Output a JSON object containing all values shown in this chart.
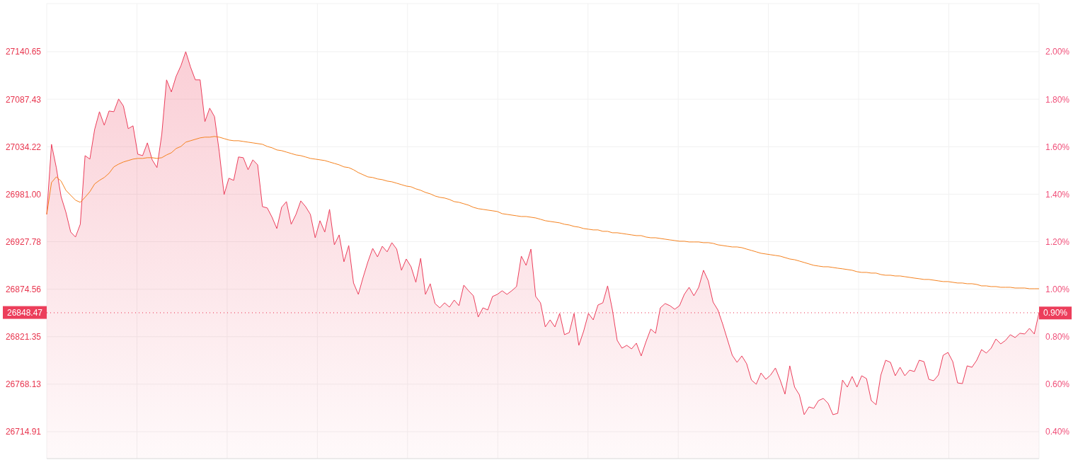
{
  "chart_data": {
    "type": "area",
    "categories": [
      null,
      null,
      null,
      null,
      null,
      null,
      null,
      null,
      null,
      null,
      null,
      null,
      null,
      null,
      null,
      null,
      null,
      null,
      null,
      null,
      null,
      null,
      null,
      null,
      null,
      null,
      null,
      null,
      null,
      null,
      null,
      null,
      null,
      null,
      null,
      null,
      null,
      null,
      null,
      null,
      null,
      null,
      null,
      null,
      null,
      null,
      null,
      null,
      null,
      null,
      null,
      null,
      null,
      null,
      null,
      null,
      null,
      null,
      null,
      null,
      null,
      null,
      null,
      null,
      null,
      null,
      null,
      null,
      null,
      null,
      null,
      null,
      null,
      null,
      null,
      null,
      null,
      null,
      null,
      null,
      null,
      null,
      null,
      null,
      null,
      null,
      null,
      null,
      null,
      null,
      null,
      null,
      null,
      null,
      null,
      null,
      null,
      null,
      null,
      null,
      null,
      null,
      null,
      null,
      null,
      null,
      null,
      null,
      null,
      null,
      null,
      null,
      null,
      null,
      null,
      null,
      null,
      null,
      null,
      null,
      null,
      null,
      null,
      null,
      null,
      null,
      null,
      null,
      null,
      null,
      null,
      null,
      null,
      null,
      null,
      null,
      null,
      null,
      null,
      null,
      null,
      null,
      null,
      null,
      null,
      null,
      null,
      null,
      null,
      null,
      null,
      null,
      null,
      null,
      null,
      null,
      null,
      null,
      null,
      null,
      null,
      null,
      null,
      null,
      null,
      null,
      null,
      null,
      null,
      null,
      null,
      null,
      null,
      null,
      null,
      null,
      null,
      null,
      null,
      null,
      null,
      null,
      null,
      null,
      null,
      null,
      null,
      null,
      null,
      null,
      null,
      null,
      null,
      null,
      null,
      null,
      null,
      null,
      null,
      null,
      null,
      null,
      null,
      null,
      null,
      null,
      null,
      null
    ],
    "series": [
      {
        "color": "#ec3e5b",
        "values": [
          26958.4,
          27036.9,
          27010.8,
          26978.2,
          26960.8,
          26938.6,
          26933.0,
          26947.3,
          27024.2,
          27020.3,
          27053.6,
          27073.4,
          27058.3,
          27074.2,
          27073.4,
          27087.7,
          27079.8,
          27054.4,
          27057.6,
          27025.8,
          27024.2,
          27038.5,
          27019.5,
          27010.8,
          27048.0,
          27109.1,
          27095.6,
          27113.1,
          27125.0,
          27140.7,
          27123.4,
          27109.1,
          27109.1,
          27062.3,
          27077.4,
          27067.9,
          27028.2,
          26980.6,
          26998.9,
          26996.5,
          27022.7,
          27021.9,
          27008.4,
          27019.5,
          27013.9,
          26967.1,
          26965.6,
          26955.2,
          26942.5,
          26966.3,
          26972.7,
          26947.3,
          26958.4,
          26973.5,
          26967.1,
          26958.4,
          26932.2,
          26951.3,
          26938.6,
          26964.0,
          26924.3,
          26935.4,
          26905.3,
          26923.5,
          26881.5,
          26868.8,
          26887.8,
          26905.3,
          26920.3,
          26910.8,
          26922.7,
          26916.4,
          26926.7,
          26919.5,
          26895.8,
          26908.4,
          26899.7,
          26882.3,
          26909.2,
          26868.8,
          26880.7,
          26858.5,
          26853.7,
          26859.3,
          26854.5,
          26862.4,
          26856.1,
          26879.1,
          26872.8,
          26867.2,
          26843.4,
          26853.7,
          26851.3,
          26866.4,
          26868.8,
          26872.8,
          26868.8,
          26872.8,
          26877.5,
          26911.6,
          26901.3,
          26919.5,
          26866.4,
          26859.3,
          26832.3,
          26840.2,
          26832.3,
          26847.4,
          26823.6,
          26826.0,
          26847.4,
          26811.7,
          26827.5,
          26847.4,
          26840.2,
          26856.9,
          26859.3,
          26878.3,
          26851.3,
          26817.2,
          26808.5,
          26811.7,
          26807.7,
          26814.1,
          26799.8,
          26815.6,
          26829.9,
          26825.2,
          26853.7,
          26858.5,
          26856.1,
          26852.1,
          26856.1,
          26868.8,
          26876.7,
          26867.2,
          26876.7,
          26895.8,
          26883.9,
          26860.1,
          26851.3,
          26835.5,
          26818.0,
          26800.6,
          26792.6,
          26799.8,
          26791.1,
          26772.8,
          26768.1,
          26780.7,
          26773.6,
          26778.4,
          26786.3,
          26772.8,
          26757.0,
          26788.7,
          26764.9,
          26756.2,
          26734.0,
          26742.7,
          26741.1,
          26749.8,
          26752.2,
          26746.6,
          26734.0,
          26735.5,
          26772.8,
          26764.9,
          26776.8,
          26764.9,
          26777.6,
          26774.4,
          26749.8,
          26745.1,
          26778.4,
          26795.0,
          26792.6,
          26777.6,
          26787.1,
          26777.6,
          26783.9,
          26782.3,
          26795.0,
          26793.4,
          26773.6,
          26772.0,
          26778.4,
          26800.6,
          26803.7,
          26793.4,
          26769.6,
          26768.8,
          26788.7,
          26787.1,
          26795.0,
          26806.9,
          26803.0,
          26808.5,
          26818.8,
          26813.3,
          26817.2,
          26823.6,
          26820.4,
          26825.2,
          26824.4,
          26830.7,
          26824.4,
          26848.47
        ]
      },
      {
        "type": "line",
        "color": "#f5821f",
        "values": [
          26958.4,
          26994.1,
          27000.4,
          26995.7,
          26985.4,
          26979.8,
          26974.3,
          26971.9,
          26977.5,
          26983.8,
          26992.5,
          26996.5,
          26999.7,
          27004.4,
          27011.6,
          27014.7,
          27017.1,
          27018.7,
          27020.3,
          27021.1,
          27021.1,
          27021.9,
          27021.9,
          27021.1,
          27021.9,
          27025.0,
          27027.4,
          27032.2,
          27034.5,
          27039.3,
          27040.9,
          27042.5,
          27044.1,
          27044.9,
          27044.9,
          27045.7,
          27044.9,
          27043.3,
          27041.7,
          27040.9,
          27040.9,
          27040.1,
          27039.3,
          27038.5,
          27037.7,
          27036.9,
          27034.5,
          27033.0,
          27030.6,
          27029.8,
          27028.2,
          27026.6,
          27025.0,
          27024.2,
          27022.7,
          27021.1,
          27020.3,
          27019.5,
          27018.7,
          27017.1,
          27015.5,
          27013.9,
          27011.6,
          27010.8,
          27008.4,
          27005.2,
          27002.8,
          27000.4,
          26999.7,
          26998.1,
          26997.3,
          26995.7,
          26994.9,
          26993.3,
          26991.7,
          26990.1,
          26989.3,
          26987.0,
          26985.4,
          26983.0,
          26981.4,
          26979.0,
          26977.5,
          26976.7,
          26975.1,
          26972.7,
          26971.9,
          26970.3,
          26968.7,
          26966.3,
          26964.8,
          26964.0,
          26963.2,
          26962.4,
          26961.6,
          26959.2,
          26958.4,
          26957.6,
          26956.8,
          26956.0,
          26956.0,
          26955.2,
          26954.4,
          26952.9,
          26951.3,
          26950.5,
          26949.7,
          26948.9,
          26947.3,
          26946.5,
          26944.9,
          26944.1,
          26942.5,
          26941.8,
          26941.0,
          26941.0,
          26939.4,
          26939.4,
          26937.8,
          26937.8,
          26937.0,
          26936.2,
          26935.4,
          26934.6,
          26934.6,
          26933.0,
          26932.2,
          26932.2,
          26931.4,
          26930.6,
          26929.8,
          26929.1,
          26928.3,
          26928.3,
          26927.5,
          26927.5,
          26927.5,
          26926.7,
          26926.7,
          26925.9,
          26924.3,
          26923.5,
          26922.7,
          26921.9,
          26921.9,
          26921.1,
          26919.5,
          26918.0,
          26916.4,
          26914.8,
          26914.0,
          26913.2,
          26912.4,
          26911.6,
          26910.0,
          26908.4,
          26907.6,
          26906.1,
          26904.5,
          26902.9,
          26901.3,
          26900.5,
          26899.7,
          26899.7,
          26898.9,
          26898.1,
          26897.4,
          26896.6,
          26895.8,
          26894.2,
          26893.4,
          26893.4,
          26892.6,
          26892.6,
          26891.0,
          26890.2,
          26890.2,
          26889.4,
          26889.4,
          26888.6,
          26887.8,
          26887.0,
          26886.3,
          26885.5,
          26885.5,
          26884.7,
          26883.9,
          26883.1,
          26883.1,
          26882.3,
          26881.5,
          26881.5,
          26880.7,
          26880.7,
          26879.9,
          26878.3,
          26878.3,
          26877.5,
          26877.5,
          26876.7,
          26876.7,
          26876.7,
          26875.9,
          26875.9,
          26875.9,
          26875.1,
          26875.1,
          26875.1
        ]
      }
    ],
    "ylim": [
      26684.8,
      27194.6
    ],
    "yticks": [
      26714.91,
      26768.13,
      26821.35,
      26874.56,
      26927.78,
      {
        "value": 26981,
        "label": "26981.00"
      },
      27034.22,
      27087.43,
      27140.65
    ],
    "y2lim": [
      0.287,
      2.203
    ],
    "y2ticks": [
      {
        "value": 0.4,
        "label": "0.40%"
      },
      {
        "value": 0.6,
        "label": "0.60%"
      },
      {
        "value": 0.8,
        "label": "0.80%"
      },
      {
        "value": 1.0,
        "label": "1.00%"
      },
      {
        "value": 1.2,
        "label": "1.20%"
      },
      {
        "value": 1.4,
        "label": "1.40%"
      },
      {
        "value": 1.6,
        "label": "1.60%"
      },
      {
        "value": 1.8,
        "label": "1.80%"
      },
      {
        "value": 2.0,
        "label": "2.00%"
      }
    ],
    "ref_lines": [
      {
        "axis": "y",
        "value": 26848.47,
        "label": "26848.47",
        "color": "#ec3e5b",
        "line_style": "dotted"
      },
      {
        "axis": "y2",
        "value": 0.9,
        "label": "0.90%",
        "color": "#ec3e5b",
        "line_style": "dotted"
      }
    ],
    "grid": true
  }
}
